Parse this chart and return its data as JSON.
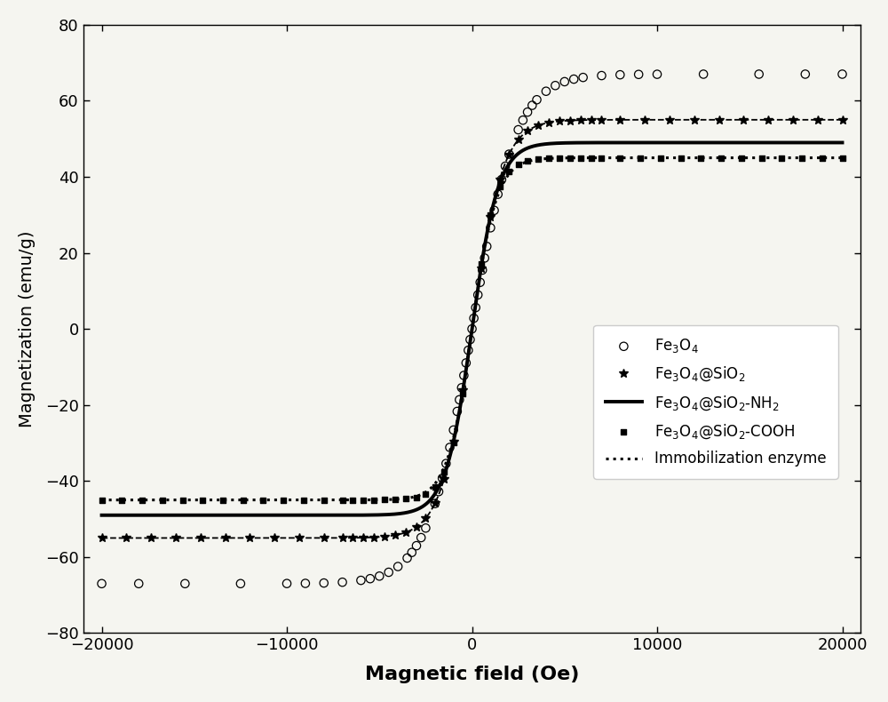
{
  "title": "",
  "xlabel": "Magnetic field (Oe)",
  "ylabel": "Magnetization (emu/g)",
  "xlim": [
    -21000,
    21000
  ],
  "ylim": [
    -80,
    80
  ],
  "xticks": [
    -20000,
    -10000,
    0,
    10000,
    20000
  ],
  "yticks": [
    -80,
    -60,
    -40,
    -20,
    0,
    20,
    40,
    60,
    80
  ],
  "background_color": "#f5f5f0",
  "fe3o4_Ms": 67,
  "fe3o4_k": 0.00042,
  "sio2_Ms": 55,
  "sio2_k": 0.0006,
  "nh2_Ms": 49,
  "nh2_k": 0.0007,
  "cooh_Ms": 45,
  "cooh_k": 0.0008,
  "immo_Ms": 45,
  "immo_k": 0.00075,
  "xlabel_fontsize": 16,
  "ylabel_fontsize": 14,
  "tick_fontsize": 13,
  "legend_fontsize": 12
}
